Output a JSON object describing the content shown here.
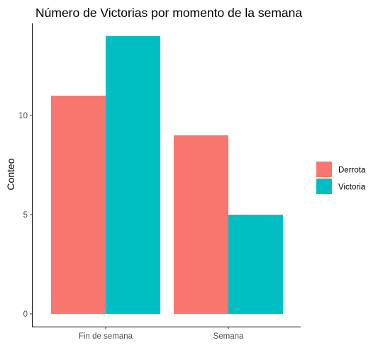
{
  "chart_data": {
    "type": "bar",
    "title": "Número de Victorias por momento de la semana",
    "xlabel": "",
    "ylabel": "Conteo",
    "categories": [
      "Fin de semana",
      "Semana"
    ],
    "series": [
      {
        "name": "Derrota",
        "values": [
          11,
          9
        ],
        "color": "#F8766D"
      },
      {
        "name": "Victoria",
        "values": [
          14,
          5
        ],
        "color": "#00BFC4"
      }
    ],
    "ylim": [
      0,
      14
    ],
    "yticks": [
      0,
      5,
      10
    ],
    "grid": false,
    "legend": "right"
  }
}
